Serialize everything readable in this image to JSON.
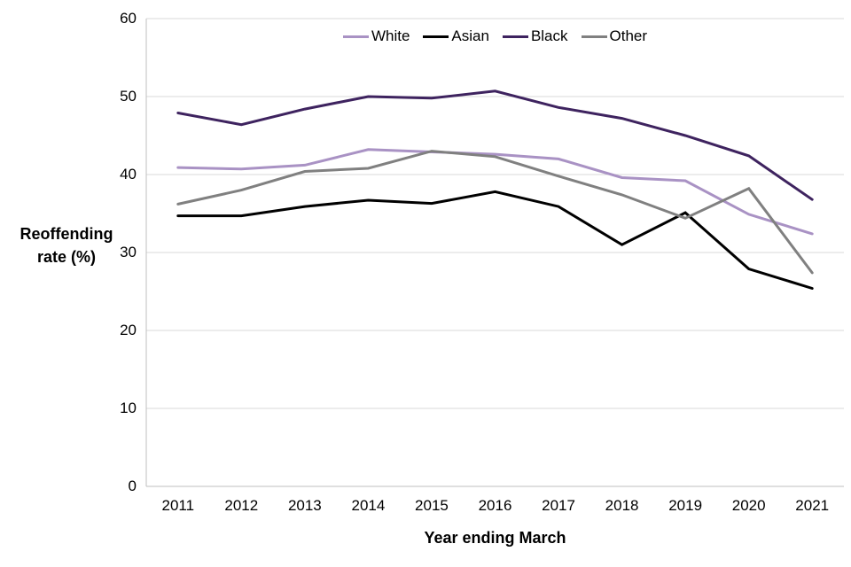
{
  "chart_data": {
    "type": "line",
    "title": "",
    "xlabel": "Year ending March",
    "ylabel": "Reoffending rate (%)",
    "ylabel_lines": [
      "Reoffending",
      "rate (%)"
    ],
    "categories": [
      "2011",
      "2012",
      "2013",
      "2014",
      "2015",
      "2016",
      "2017",
      "2018",
      "2019",
      "2020",
      "2021"
    ],
    "series": [
      {
        "name": "White",
        "color": "#a992c4",
        "values": [
          40.9,
          40.7,
          41.2,
          43.2,
          42.9,
          42.6,
          42.0,
          39.6,
          39.2,
          34.9,
          32.4
        ]
      },
      {
        "name": "Asian",
        "color": "#000000",
        "values": [
          34.7,
          34.7,
          35.9,
          36.7,
          36.3,
          37.8,
          35.9,
          31.0,
          35.1,
          27.9,
          25.4
        ]
      },
      {
        "name": "Black",
        "color": "#3e235f",
        "values": [
          47.9,
          46.4,
          48.4,
          50.0,
          49.8,
          50.7,
          48.6,
          47.2,
          45.0,
          42.4,
          36.8
        ]
      },
      {
        "name": "Other",
        "color": "#808080",
        "values": [
          36.2,
          38.0,
          40.4,
          40.8,
          43.0,
          42.3,
          39.8,
          37.4,
          34.4,
          38.2,
          27.4
        ]
      }
    ],
    "ylim": [
      0,
      60
    ],
    "yticks": [
      0,
      10,
      20,
      30,
      40,
      50,
      60
    ],
    "ytick_step": 10,
    "grid": "horizontal",
    "legend_position": "top",
    "line_width": 3
  },
  "colors": {
    "grid": "#d9d9d9",
    "axis": "#bfbfbf",
    "text": "#000000",
    "background": "#ffffff"
  }
}
